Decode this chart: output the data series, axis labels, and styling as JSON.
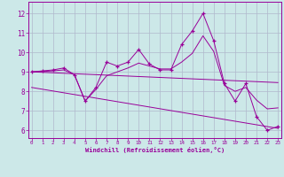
{
  "xlabel": "Windchill (Refroidissement éolien,°C)",
  "bg_color": "#cce8e8",
  "grid_color": "#b0b8cc",
  "line_color": "#990099",
  "x_ticks": [
    0,
    1,
    2,
    3,
    4,
    5,
    6,
    7,
    8,
    9,
    10,
    11,
    12,
    13,
    14,
    15,
    16,
    17,
    18,
    19,
    20,
    21,
    22,
    23
  ],
  "y_ticks": [
    6,
    7,
    8,
    9,
    10,
    11,
    12
  ],
  "xlim": [
    -0.3,
    23.3
  ],
  "ylim": [
    5.6,
    12.6
  ],
  "line1_x": [
    0,
    1,
    2,
    3,
    4,
    5,
    6,
    7,
    8,
    9,
    10,
    11,
    12,
    13,
    14,
    15,
    16,
    17,
    18,
    19,
    20,
    21,
    22,
    23
  ],
  "line1_y": [
    9.0,
    9.05,
    9.1,
    9.2,
    8.85,
    7.5,
    8.2,
    9.5,
    9.3,
    9.5,
    10.15,
    9.4,
    9.1,
    9.1,
    10.4,
    11.1,
    12.0,
    10.6,
    8.4,
    7.5,
    8.4,
    6.7,
    6.0,
    6.2
  ],
  "line2_x": [
    0,
    1,
    2,
    3,
    4,
    5,
    6,
    7,
    8,
    9,
    10,
    11,
    12,
    13,
    14,
    15,
    16,
    17,
    18,
    19,
    20,
    21,
    22,
    23
  ],
  "line2_y": [
    9.0,
    9.02,
    9.05,
    9.1,
    8.85,
    7.5,
    8.1,
    8.8,
    9.0,
    9.2,
    9.45,
    9.3,
    9.15,
    9.15,
    9.5,
    9.95,
    10.85,
    10.05,
    8.3,
    8.0,
    8.2,
    7.55,
    7.1,
    7.15
  ],
  "line3_x": [
    0,
    23
  ],
  "line3_y": [
    9.0,
    8.45
  ],
  "line4_x": [
    0,
    23
  ],
  "line4_y": [
    8.2,
    6.1
  ]
}
